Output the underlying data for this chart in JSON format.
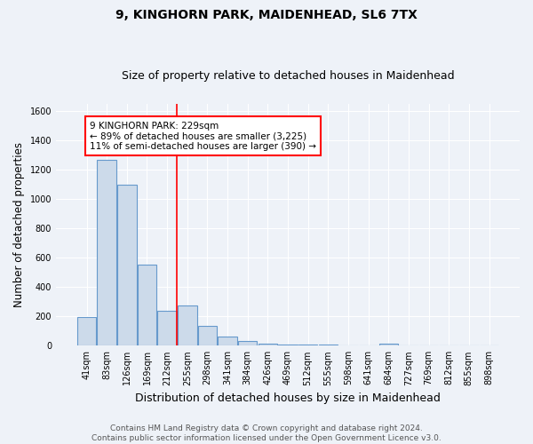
{
  "title": "9, KINGHORN PARK, MAIDENHEAD, SL6 7TX",
  "subtitle": "Size of property relative to detached houses in Maidenhead",
  "xlabel": "Distribution of detached houses by size in Maidenhead",
  "ylabel": "Number of detached properties",
  "footer_line1": "Contains HM Land Registry data © Crown copyright and database right 2024.",
  "footer_line2": "Contains public sector information licensed under the Open Government Licence v3.0.",
  "categories": [
    "41sqm",
    "83sqm",
    "126sqm",
    "169sqm",
    "212sqm",
    "255sqm",
    "298sqm",
    "341sqm",
    "384sqm",
    "426sqm",
    "469sqm",
    "512sqm",
    "555sqm",
    "598sqm",
    "641sqm",
    "684sqm",
    "727sqm",
    "769sqm",
    "812sqm",
    "855sqm",
    "898sqm"
  ],
  "values": [
    197,
    1268,
    1100,
    552,
    240,
    272,
    134,
    60,
    32,
    16,
    10,
    8,
    5,
    3,
    0,
    14,
    0,
    0,
    0,
    0,
    0
  ],
  "bar_color": "#ccdaea",
  "bar_edge_color": "#6699cc",
  "red_line_x": 4.5,
  "annotation_line1": "9 KINGHORN PARK: 229sqm",
  "annotation_line2": "← 89% of detached houses are smaller (3,225)",
  "annotation_line3": "11% of semi-detached houses are larger (390) →",
  "ylim": [
    0,
    1650
  ],
  "yticks": [
    0,
    200,
    400,
    600,
    800,
    1000,
    1200,
    1400,
    1600
  ],
  "background_color": "#eef2f8",
  "plot_background": "#eef2f8",
  "grid_color": "#ffffff",
  "title_fontsize": 10,
  "subtitle_fontsize": 9,
  "axis_label_fontsize": 8.5,
  "tick_fontsize": 7,
  "annotation_fontsize": 7.5,
  "footer_fontsize": 6.5
}
